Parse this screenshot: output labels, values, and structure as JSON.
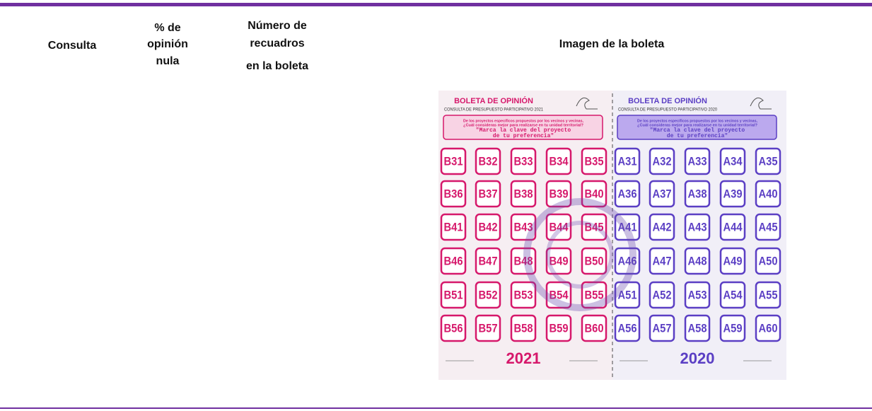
{
  "table": {
    "headers": [
      [
        "Consulta"
      ],
      [
        "% de",
        "opinión",
        "nula"
      ],
      [
        "Número de",
        "recuadros",
        "en la boleta"
      ],
      [
        "Imagen de la boleta"
      ]
    ]
  },
  "ballot": {
    "halves": [
      {
        "title": "BOLETA DE OPINIÓN",
        "subtitle": "CONSULTA DE PRESUPUESTO PARTICIPATIVO 2021",
        "question": [
          "De los proyectos específicos propuestos por los vecinos y vecinas,",
          "¿Cuál consideras mejor para realizarse en tu unidad territorial?"
        ],
        "instruction": [
          "\"Marca la clave del proyecto",
          "de tu preferencia\""
        ],
        "codes": [
          "B31",
          "B32",
          "B33",
          "B34",
          "B35",
          "B36",
          "B37",
          "B38",
          "B39",
          "B40",
          "B41",
          "B42",
          "B43",
          "B44",
          "B45",
          "B46",
          "B47",
          "B48",
          "B49",
          "B50",
          "B51",
          "B52",
          "B53",
          "B54",
          "B55",
          "B56",
          "B57",
          "B58",
          "B59",
          "B60"
        ],
        "year": "2021",
        "color": "#d6186b"
      },
      {
        "title": "BOLETA DE OPINIÓN",
        "subtitle": "CONSULTA DE PRESUPUESTO PARTICIPATIVO 2020",
        "question": [
          "De los proyectos específicos propuestos por los vecinos y vecinas,",
          "¿Cuál consideras mejor para realizarse en tu unidad territorial?"
        ],
        "instruction": [
          "\"Marca la clave del proyecto",
          "de tu preferencia\""
        ],
        "codes": [
          "A31",
          "A32",
          "A33",
          "A34",
          "A35",
          "A36",
          "A37",
          "A38",
          "A39",
          "A40",
          "A41",
          "A42",
          "A43",
          "A44",
          "A45",
          "A46",
          "A47",
          "A48",
          "A49",
          "A50",
          "A51",
          "A52",
          "A53",
          "A54",
          "A55",
          "A56",
          "A57",
          "A58",
          "A59",
          "A60"
        ],
        "year": "2020",
        "color": "#5b3fc4"
      }
    ]
  }
}
